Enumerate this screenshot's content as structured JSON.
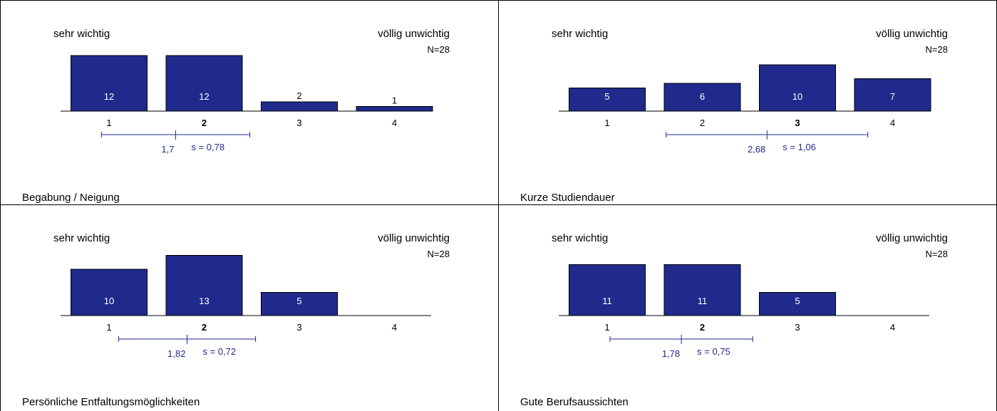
{
  "colors": {
    "bar": "#1f2a8c",
    "bar_stroke": "#000000",
    "bar_label": "#ffffff",
    "bar_label_outside": "#000000",
    "axis": "#000000",
    "stat": "#1f2a8c",
    "border": "#000000"
  },
  "chart_data": [
    {
      "type": "bar",
      "title": "Begabung / Neigung",
      "label_left": "sehr wichtig",
      "label_right": "völlig unwichtig",
      "n_label": "N=28",
      "categories": [
        "1",
        "2",
        "3",
        "4"
      ],
      "values": [
        12,
        12,
        2,
        1
      ],
      "value_labels": [
        "12",
        "12",
        "2",
        "1"
      ],
      "median_category": "2",
      "mean": 1.7,
      "mean_label": "1,7",
      "sd": 0.78,
      "sd_label": "s = 0,78",
      "ylim": [
        0,
        13
      ]
    },
    {
      "type": "bar",
      "title": "Kurze Studiendauer",
      "label_left": "sehr wichtig",
      "label_right": "völlig unwichtig",
      "n_label": "N=28",
      "categories": [
        "1",
        "2",
        "3",
        "4"
      ],
      "values": [
        5,
        6,
        10,
        7
      ],
      "value_labels": [
        "5",
        "6",
        "10",
        "7"
      ],
      "median_category": "3",
      "mean": 2.68,
      "mean_label": "2,68",
      "sd": 1.06,
      "sd_label": "s = 1,06",
      "ylim": [
        0,
        13
      ]
    },
    {
      "type": "bar",
      "title": "Persönliche Entfaltungsmöglichkeiten",
      "label_left": "sehr wichtig",
      "label_right": "völlig unwichtig",
      "n_label": "N=28",
      "categories": [
        "1",
        "2",
        "3",
        "4"
      ],
      "values": [
        10,
        13,
        5,
        0
      ],
      "value_labels": [
        "10",
        "13",
        "5",
        ""
      ],
      "median_category": "2",
      "mean": 1.82,
      "mean_label": "1,82",
      "sd": 0.72,
      "sd_label": "s = 0,72",
      "ylim": [
        0,
        13
      ]
    },
    {
      "type": "bar",
      "title": "Gute Berufsaussichten",
      "label_left": "sehr wichtig",
      "label_right": "völlig unwichtig",
      "n_label": "N=28",
      "categories": [
        "1",
        "2",
        "3",
        "4"
      ],
      "values": [
        11,
        11,
        5,
        0
      ],
      "value_labels": [
        "11",
        "11",
        "5",
        ""
      ],
      "median_category": "2",
      "mean": 1.78,
      "mean_label": "1,78",
      "sd": 0.75,
      "sd_label": "s = 0,75",
      "ylim": [
        0,
        11
      ]
    }
  ]
}
